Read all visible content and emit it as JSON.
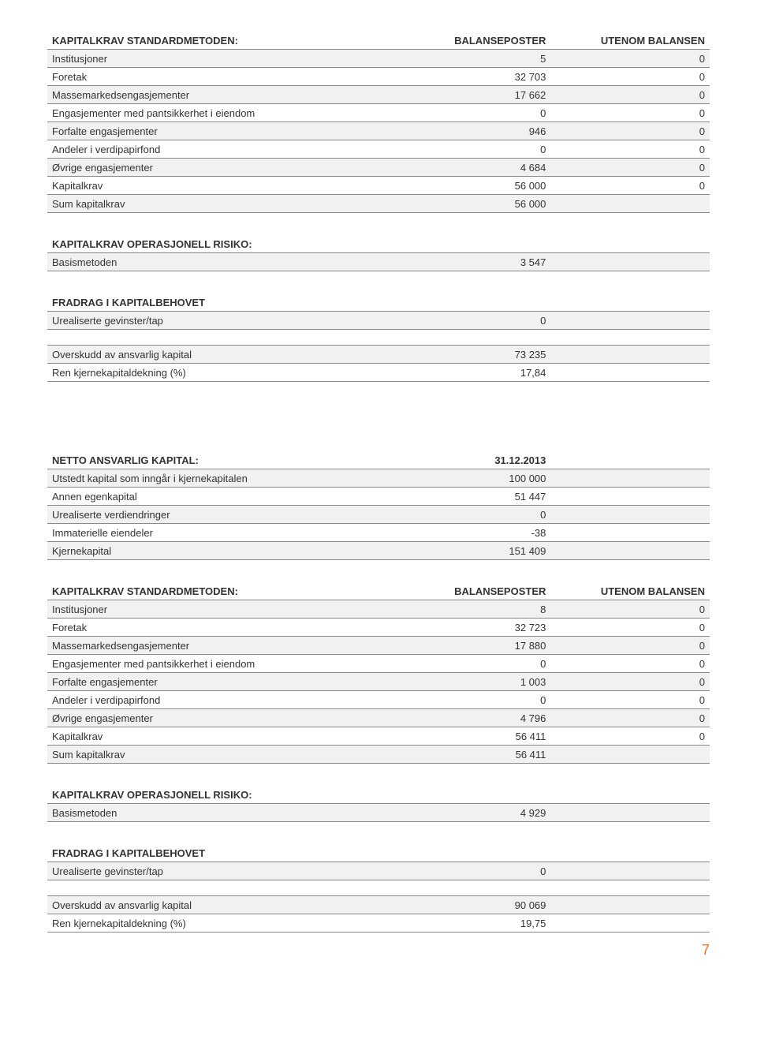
{
  "table1": {
    "header": {
      "label": "KAPITALKRAV STANDARDMETODEN:",
      "col1": "BALANSEPOSTER",
      "col2": "UTENOM BALANSEN"
    },
    "rows": [
      {
        "label": "Institusjoner",
        "v1": "5",
        "v2": "0",
        "shade": true
      },
      {
        "label": "Foretak",
        "v1": "32 703",
        "v2": "0",
        "shade": false
      },
      {
        "label": "Massemarkedsengasjementer",
        "v1": "17 662",
        "v2": "0",
        "shade": true
      },
      {
        "label": "Engasjementer med pantsikkerhet i eiendom",
        "v1": "0",
        "v2": "0",
        "shade": false
      },
      {
        "label": "Forfalte engasjementer",
        "v1": "946",
        "v2": "0",
        "shade": true
      },
      {
        "label": "Andeler i verdipapirfond",
        "v1": "0",
        "v2": "0",
        "shade": false
      },
      {
        "label": "Øvrige engasjementer",
        "v1": "4 684",
        "v2": "0",
        "shade": true
      },
      {
        "label": "Kapitalkrav",
        "v1": "56 000",
        "v2": "0",
        "shade": false
      },
      {
        "label": "Sum kapitalkrav",
        "v1": "56 000",
        "v2": "",
        "shade": true
      }
    ]
  },
  "table2": {
    "header": "KAPITALKRAV OPERASJONELL RISIKO:",
    "rows": [
      {
        "label": "Basismetoden",
        "v1": "3 547",
        "shade": true
      }
    ]
  },
  "table3": {
    "header": "FRADRAG I KAPITALBEHOVET",
    "rows": [
      {
        "label": "Urealiserte gevinster/tap",
        "v1": "0",
        "shade": true
      }
    ]
  },
  "table4": {
    "rows": [
      {
        "label": "Overskudd av ansvarlig kapital",
        "v1": "73 235",
        "shade": true
      },
      {
        "label": "Ren kjernekapitaldekning (%)",
        "v1": "17,84",
        "shade": false
      }
    ]
  },
  "table5": {
    "header": {
      "label": "NETTO ANSVARLIG KAPITAL:",
      "col1": "31.12.2013"
    },
    "rows": [
      {
        "label": "Utstedt kapital som inngår i kjernekapitalen",
        "v1": "100 000",
        "shade": true
      },
      {
        "label": "Annen egenkapital",
        "v1": "51 447",
        "shade": false
      },
      {
        "label": "Urealiserte verdiendringer",
        "v1": "0",
        "shade": true
      },
      {
        "label": "Immaterielle eiendeler",
        "v1": "-38",
        "shade": false
      },
      {
        "label": "Kjernekapital",
        "v1": "151 409",
        "shade": true
      }
    ]
  },
  "table6": {
    "header": {
      "label": "KAPITALKRAV STANDARDMETODEN:",
      "col1": "BALANSEPOSTER",
      "col2": "UTENOM BALANSEN"
    },
    "rows": [
      {
        "label": "Institusjoner",
        "v1": "8",
        "v2": "0",
        "shade": true
      },
      {
        "label": "Foretak",
        "v1": "32 723",
        "v2": "0",
        "shade": false
      },
      {
        "label": "Massemarkedsengasjementer",
        "v1": "17 880",
        "v2": "0",
        "shade": true
      },
      {
        "label": "Engasjementer med pantsikkerhet i eiendom",
        "v1": "0",
        "v2": "0",
        "shade": false
      },
      {
        "label": "Forfalte engasjementer",
        "v1": "1 003",
        "v2": "0",
        "shade": true
      },
      {
        "label": "Andeler i verdipapirfond",
        "v1": "0",
        "v2": "0",
        "shade": false
      },
      {
        "label": "Øvrige engasjementer",
        "v1": "4 796",
        "v2": "0",
        "shade": true
      },
      {
        "label": "Kapitalkrav",
        "v1": "56 411",
        "v2": "0",
        "shade": false
      },
      {
        "label": "Sum kapitalkrav",
        "v1": "56 411",
        "v2": "",
        "shade": true
      }
    ]
  },
  "table7": {
    "header": "KAPITALKRAV OPERASJONELL RISIKO:",
    "rows": [
      {
        "label": "Basismetoden",
        "v1": "4 929",
        "shade": true
      }
    ]
  },
  "table8": {
    "header": "FRADRAG I KAPITALBEHOVET",
    "rows": [
      {
        "label": "Urealiserte gevinster/tap",
        "v1": "0",
        "shade": true
      }
    ]
  },
  "table9": {
    "rows": [
      {
        "label": "Overskudd av ansvarlig kapital",
        "v1": "90 069",
        "shade": true
      },
      {
        "label": "Ren kjernekapitaldekning (%)",
        "v1": "19,75",
        "shade": false
      }
    ]
  },
  "pageNumber": "7"
}
